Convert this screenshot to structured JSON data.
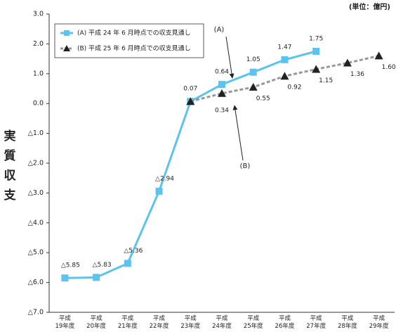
{
  "chart_data": {
    "type": "line",
    "unit": "(単位：億円)",
    "ylabel": "実質収支",
    "categories": [
      "平成19年度",
      "平成20年度",
      "平成21年度",
      "平成22年度",
      "平成23年度",
      "平成24年度",
      "平成25年度",
      "平成26年度",
      "平成27年度",
      "平成28年度",
      "平成29年度"
    ],
    "series": [
      {
        "name": "(A) 平成 24 年 6 月時点での収支見通し",
        "color": "#5bc3ee",
        "marker": "square",
        "values": [
          -5.85,
          -5.83,
          -5.36,
          -2.94,
          0.07,
          0.64,
          1.05,
          1.47,
          1.75,
          null,
          null
        ],
        "value_labels": [
          "△5.85",
          "△5.83",
          "△5.36",
          "△2.94",
          "0.07",
          "0.64",
          "1.05",
          "1.47",
          "1.75",
          null,
          null
        ]
      },
      {
        "name": "(B) 平成 25 年 6 月時点での収支見通し",
        "color": "#999999",
        "marker": "triangle",
        "dashed": true,
        "values": [
          null,
          null,
          null,
          null,
          0.07,
          0.34,
          0.55,
          0.92,
          1.15,
          1.36,
          1.6
        ],
        "value_labels": [
          null,
          null,
          null,
          null,
          null,
          "0.34",
          "0.55",
          "0.92",
          "1.15",
          "1.36",
          "1.60"
        ]
      }
    ],
    "ylim": [
      -7,
      3
    ],
    "yticks": [
      {
        "value": 3,
        "label": "3.0"
      },
      {
        "value": 2,
        "label": "2.0"
      },
      {
        "value": 1,
        "label": "1.0"
      },
      {
        "value": 0,
        "label": "0.0"
      },
      {
        "value": -1,
        "label": "△1.0"
      },
      {
        "value": -2,
        "label": "△2.0"
      },
      {
        "value": -3,
        "label": "△3.0"
      },
      {
        "value": -4,
        "label": "△4.0"
      },
      {
        "value": -5,
        "label": "△5.0"
      },
      {
        "value": -6,
        "label": "△6.0"
      },
      {
        "value": -7,
        "label": "△7.0"
      }
    ],
    "grid": false,
    "annotations": [
      "(A)",
      "(B)"
    ]
  }
}
